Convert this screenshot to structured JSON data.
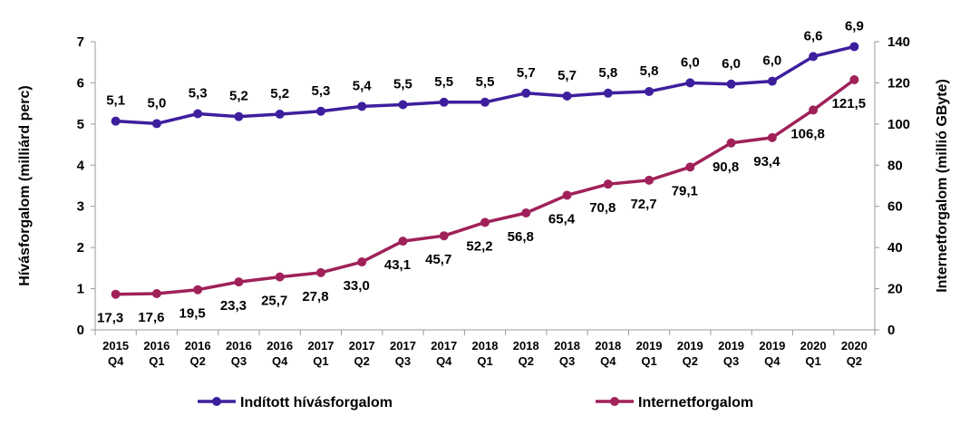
{
  "chart_data": {
    "type": "line",
    "ylabel": "Hívásforgalom (milliárd perc)",
    "y2label": "Internetforgalom (millió GByte)",
    "ylim": [
      0,
      7
    ],
    "y2lim": [
      0,
      140
    ],
    "yticks": [
      "0",
      "1",
      "2",
      "3",
      "4",
      "5",
      "6",
      "7"
    ],
    "y2ticks": [
      "0",
      "20",
      "40",
      "60",
      "80",
      "100",
      "120",
      "140"
    ],
    "categories": [
      [
        "2015",
        "Q4"
      ],
      [
        "2016",
        "Q1"
      ],
      [
        "2016",
        "Q2"
      ],
      [
        "2016",
        "Q3"
      ],
      [
        "2016",
        "Q4"
      ],
      [
        "2017",
        "Q1"
      ],
      [
        "2017",
        "Q2"
      ],
      [
        "2017",
        "Q3"
      ],
      [
        "2017",
        "Q4"
      ],
      [
        "2018",
        "Q1"
      ],
      [
        "2018",
        "Q2"
      ],
      [
        "2018",
        "Q3"
      ],
      [
        "2018",
        "Q4"
      ],
      [
        "2019",
        "Q1"
      ],
      [
        "2019",
        "Q2"
      ],
      [
        "2019",
        "Q3"
      ],
      [
        "2019",
        "Q4"
      ],
      [
        "2020",
        "Q1"
      ],
      [
        "2020",
        "Q2"
      ]
    ],
    "legend_position": "bottom",
    "grid": false,
    "series": [
      {
        "name": "Indított hívásforgalom",
        "axis": "left",
        "color": "#3d1f9e",
        "values": [
          5.07,
          5.01,
          5.25,
          5.18,
          5.24,
          5.31,
          5.43,
          5.47,
          5.53,
          5.53,
          5.75,
          5.68,
          5.75,
          5.79,
          6.0,
          5.97,
          6.04,
          6.64,
          6.88
        ],
        "labels": [
          "5,1",
          "5,0",
          "5,3",
          "5,2",
          "5,2",
          "5,3",
          "5,4",
          "5,5",
          "5,5",
          "5,5",
          "5,7",
          "5,7",
          "5,8",
          "5,8",
          "6,0",
          "6,0",
          "6,0",
          "6,6",
          "6,9"
        ]
      },
      {
        "name": "Internetforgalom",
        "axis": "right",
        "color": "#a0215a",
        "values": [
          17.3,
          17.6,
          19.5,
          23.3,
          25.7,
          27.8,
          33.0,
          43.1,
          45.7,
          52.2,
          56.8,
          65.4,
          70.8,
          72.7,
          79.1,
          90.8,
          93.4,
          106.8,
          121.5
        ],
        "labels": [
          "17,3",
          "17,6",
          "19,5",
          "23,3",
          "25,7",
          "27,8",
          "33,0",
          "43,1",
          "45,7",
          "52,2",
          "56,8",
          "65,4",
          "70,8",
          "72,7",
          "79,1",
          "90,8",
          "93,4",
          "106,8",
          "121,5"
        ]
      }
    ]
  }
}
